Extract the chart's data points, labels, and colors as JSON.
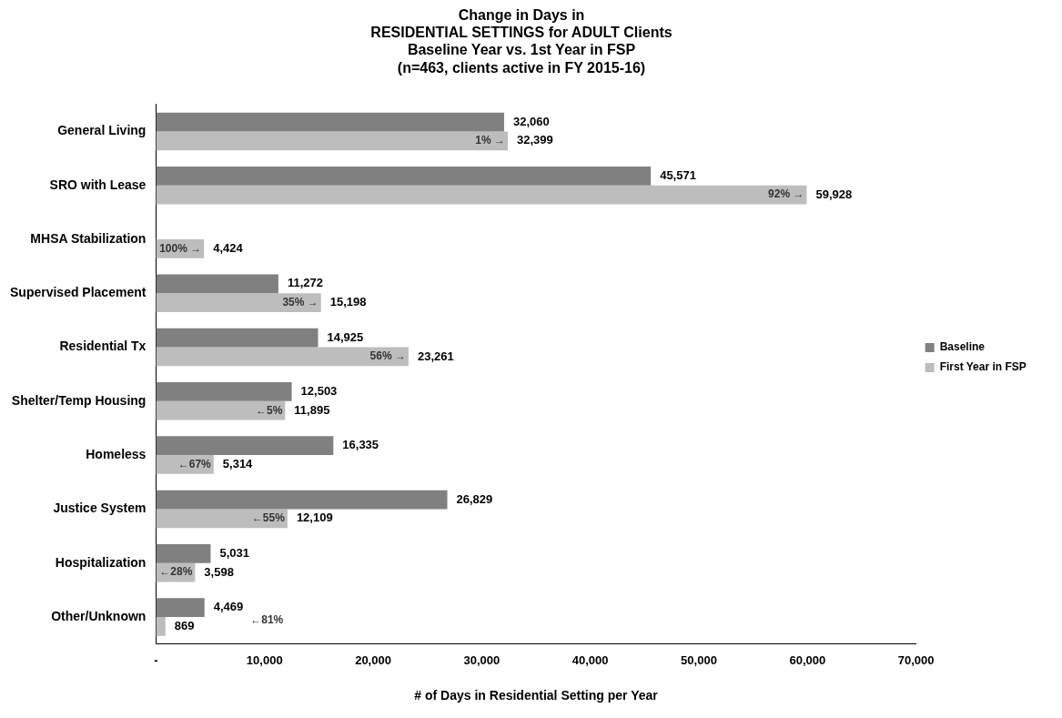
{
  "chart_data": {
    "type": "bar",
    "orientation": "horizontal",
    "title": "Change in Days in\nRESIDENTIAL SETTINGS for ADULT Clients\nBaseline Year vs. 1st Year in FSP\n(n=463, clients active in FY 2015-16)",
    "xlabel": "# of Days in Residential Setting per Year",
    "categories": [
      "General Living",
      "SRO with Lease",
      "MHSA Stabilization",
      "Supervised Placement",
      "Residential Tx",
      "Shelter/Temp Housing",
      "Homeless",
      "Justice System",
      "Hospitalization",
      "Other/Unknown"
    ],
    "series": [
      {
        "name": "Baseline",
        "color": "#808080",
        "values": [
          32060,
          45571,
          null,
          11272,
          14925,
          12503,
          16335,
          26829,
          5031,
          4469
        ],
        "value_labels": [
          "32,060",
          "45,571",
          null,
          "11,272",
          "14,925",
          "12,503",
          "16,335",
          "26,829",
          "5,031",
          "4,469"
        ]
      },
      {
        "name": "First Year in FSP",
        "color": "#bdbdbd",
        "values": [
          32399,
          59928,
          4424,
          15198,
          23261,
          11895,
          5314,
          12109,
          3598,
          869
        ],
        "value_labels": [
          "32,399",
          "59,928",
          "4,424",
          "15,198",
          "23,261",
          "11,895",
          "5,314",
          "12,109",
          "3,598",
          "869"
        ]
      }
    ],
    "xlim": [
      0,
      70000
    ],
    "xticks": [
      {
        "value": 0,
        "label": "-"
      },
      {
        "value": 10000,
        "label": "10,000"
      },
      {
        "value": 20000,
        "label": "20,000"
      },
      {
        "value": 30000,
        "label": "30,000"
      },
      {
        "value": 40000,
        "label": "40,000"
      },
      {
        "value": 50000,
        "label": "50,000"
      },
      {
        "value": 60000,
        "label": "60,000"
      },
      {
        "value": 70000,
        "label": "70,000"
      }
    ],
    "grid": false,
    "legend": "right",
    "annotations": [
      {
        "text": "1% →",
        "x": 32399,
        "y": "General Living"
      },
      {
        "text": "92% →",
        "x": 59928,
        "y": "SRO with Lease"
      },
      {
        "text": "100% →",
        "x": 4424,
        "y": "MHSA Stabilization"
      },
      {
        "text": "35% →",
        "x": 15198,
        "y": "Supervised Placement"
      },
      {
        "text": "56% →",
        "x": 23261,
        "y": "Residential Tx"
      },
      {
        "text": "←5%",
        "x": 11895,
        "y": "Shelter/Temp Housing"
      },
      {
        "text": "←67%",
        "x": 5314,
        "y": "Homeless"
      },
      {
        "text": "←55%",
        "x": 12109,
        "y": "Justice System"
      },
      {
        "text": "←28%",
        "x": 3598,
        "y": "Hospitalization"
      },
      "←81%"
    ]
  }
}
